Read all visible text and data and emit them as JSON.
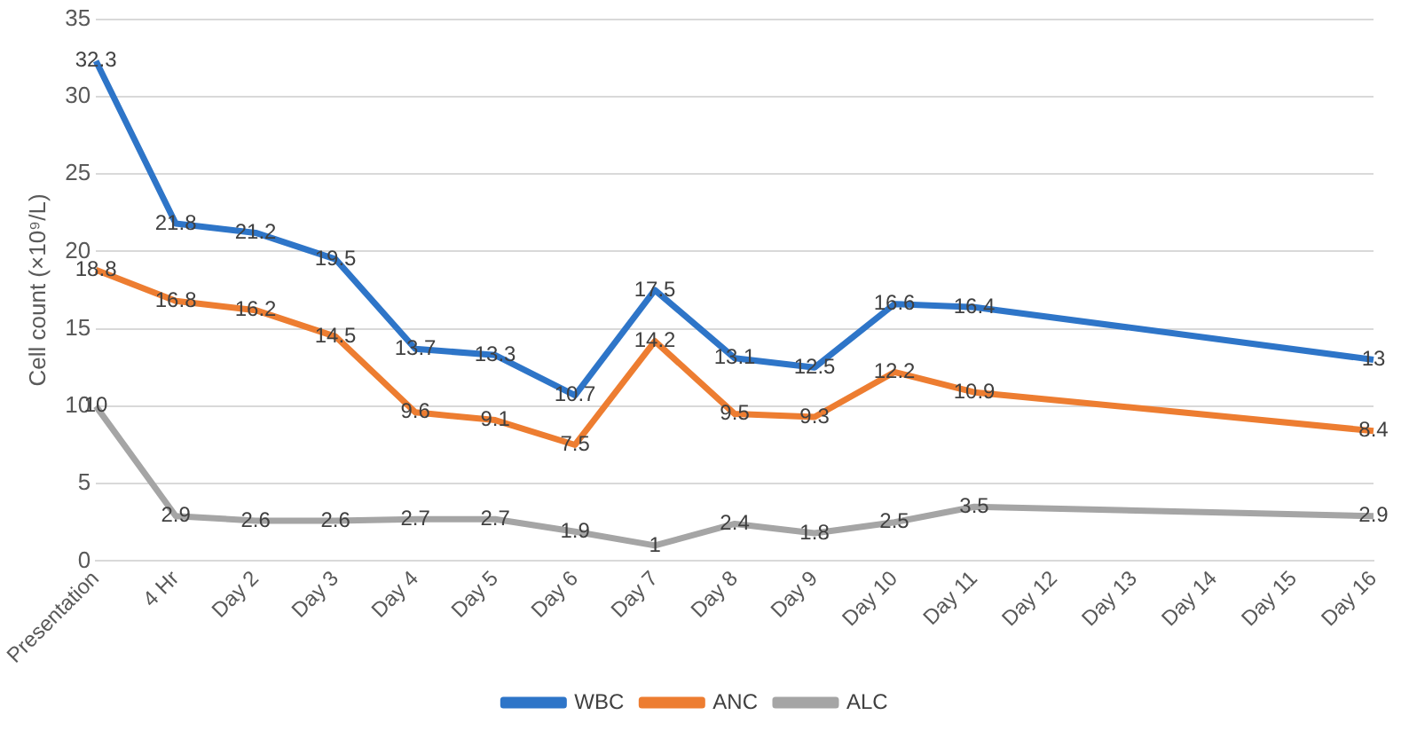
{
  "chart_data": {
    "type": "line",
    "ylabel": "Cell count (×10⁹/L)",
    "categories": [
      "Presentation",
      "4 Hr",
      "Day 2",
      "Day 3",
      "Day 4",
      "Day 5",
      "Day 6",
      "Day 7",
      "Day 8",
      "Day 9",
      "Day 10",
      "Day 11",
      "Day 12",
      "Day 13",
      "Day 14",
      "Day 15",
      "Day 16"
    ],
    "series": [
      {
        "name": "WBC",
        "color": "#2e75c8",
        "values": [
          32.3,
          21.8,
          21.2,
          19.5,
          13.7,
          13.3,
          10.7,
          17.5,
          13.1,
          12.5,
          16.6,
          16.4,
          null,
          null,
          null,
          null,
          13
        ]
      },
      {
        "name": "ANC",
        "color": "#ed7d31",
        "values": [
          18.8,
          16.8,
          16.2,
          14.5,
          9.6,
          9.1,
          7.5,
          14.2,
          9.5,
          9.3,
          12.2,
          10.9,
          null,
          null,
          null,
          null,
          8.4
        ]
      },
      {
        "name": "ALC",
        "color": "#a5a5a5",
        "values": [
          10,
          2.9,
          2.6,
          2.6,
          2.7,
          2.7,
          1.9,
          1,
          2.4,
          1.8,
          2.5,
          3.5,
          null,
          null,
          null,
          null,
          2.9
        ]
      }
    ],
    "ylim": [
      0,
      35
    ],
    "yticks": [
      0,
      5,
      10,
      15,
      20,
      25,
      30,
      35
    ],
    "grid": "y",
    "legend": "bottom",
    "marker": "none",
    "line_style": "solid",
    "data_labels": true
  }
}
